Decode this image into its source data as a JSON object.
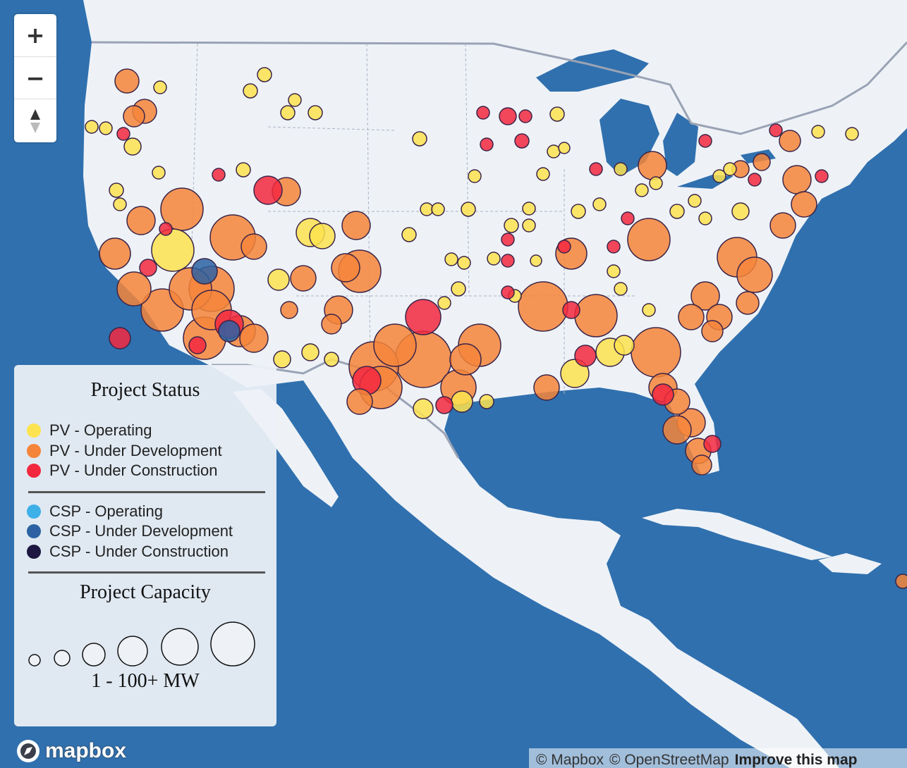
{
  "map_controls": {
    "zoom_in": "+",
    "zoom_out": "−"
  },
  "legend": {
    "status_title": "Project Status",
    "status_groups": [
      [
        {
          "label": "PV - Operating",
          "color": "#fde34f"
        },
        {
          "label": "PV - Under Development",
          "color": "#f5853a"
        },
        {
          "label": "PV - Under Construction",
          "color": "#f2283f"
        }
      ],
      [
        {
          "label": "CSP - Operating",
          "color": "#3db0e8"
        },
        {
          "label": "CSP - Under Development",
          "color": "#2c62a3"
        },
        {
          "label": "CSP - Under Construction",
          "color": "#1d1640"
        }
      ]
    ],
    "capacity_title": "Project Capacity",
    "capacity_range": "1 - 100+ MW"
  },
  "attribution": {
    "logo": "mapbox",
    "links": [
      "© Mapbox",
      "© OpenStreetMap",
      "Improve this map"
    ]
  }
}
